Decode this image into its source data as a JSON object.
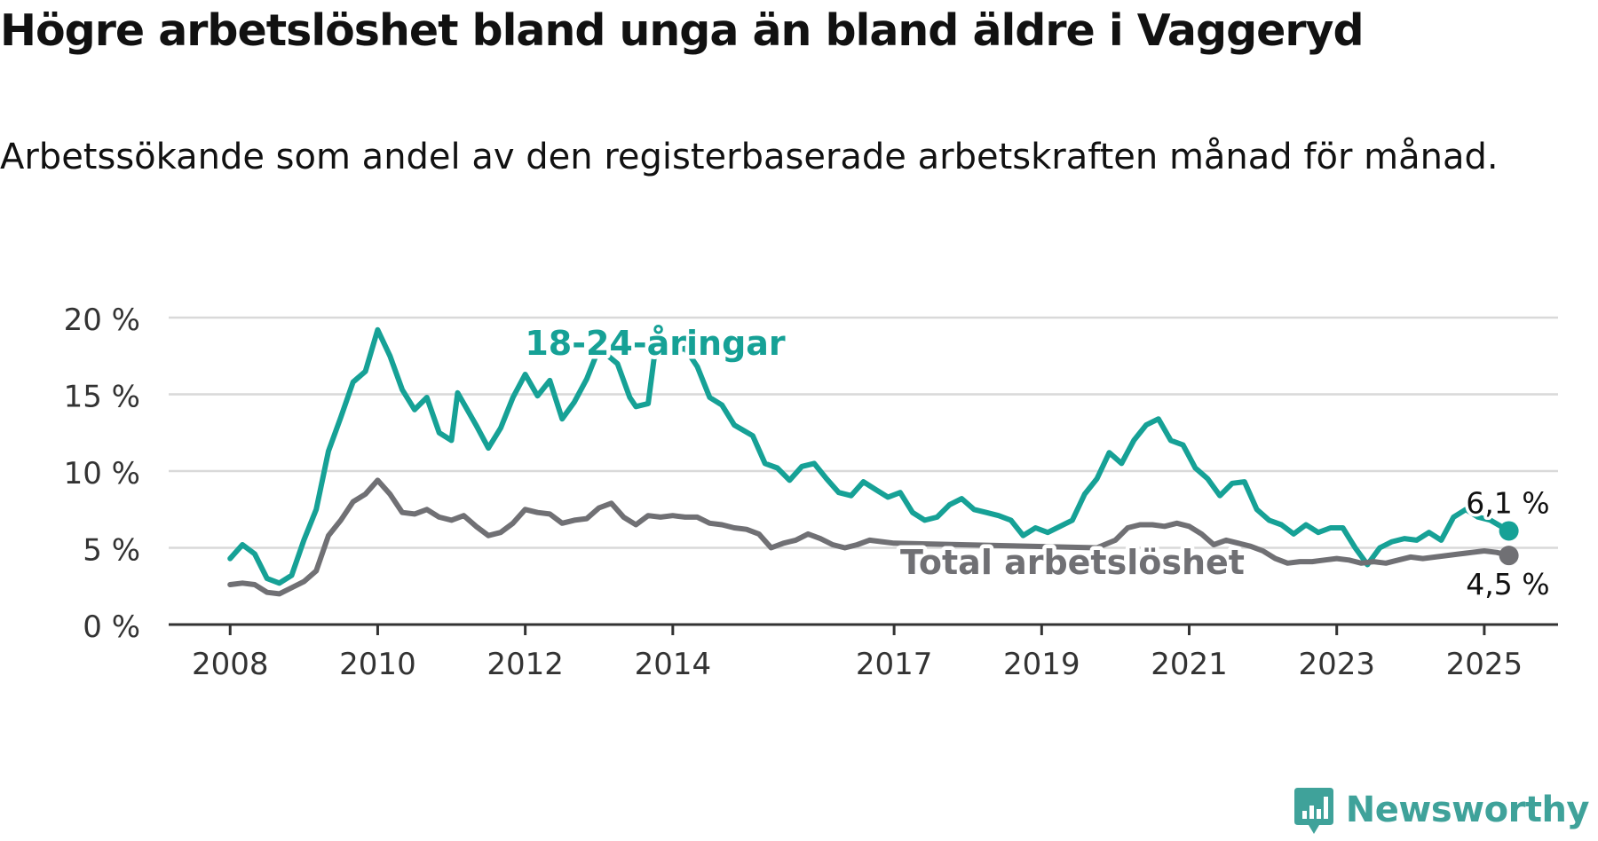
{
  "title": "Högre arbetslöshet bland unga än bland äldre i Vaggeryd",
  "subtitle": "Arbetssökande som andel av den registerbaserade arbetskraften månad för månad.",
  "brand": {
    "name": "Newsworthy",
    "icon": "newsworthy-logo-icon",
    "color": "#3fa29a"
  },
  "chart_data": {
    "type": "line",
    "title": "Högre arbetslöshet bland unga än bland äldre i Vaggeryd",
    "subtitle": "Arbetssökande som andel av den registerbaserade arbetskraften månad för månad.",
    "xlabel": "",
    "ylabel": "",
    "x_ticks": [
      "2008",
      "2010",
      "2012",
      "2014",
      "2017",
      "2019",
      "2021",
      "2023",
      "2025"
    ],
    "y_ticks": [
      "0 %",
      "5 %",
      "10 %",
      "15 %",
      "20 %"
    ],
    "ylim": [
      0,
      20
    ],
    "xlim": [
      "2007-03",
      "2026-01"
    ],
    "grid": "horizontal",
    "legend": "inline labels on lines",
    "series": [
      {
        "name": "18-24-åringar",
        "color": "#16a196",
        "end_label": "6,1 %",
        "points": [
          [
            "2008-01",
            4.3
          ],
          [
            "2008-03",
            5.2
          ],
          [
            "2008-05",
            4.6
          ],
          [
            "2008-07",
            3.0
          ],
          [
            "2008-09",
            2.7
          ],
          [
            "2008-11",
            3.2
          ],
          [
            "2009-01",
            5.5
          ],
          [
            "2009-03",
            7.5
          ],
          [
            "2009-05",
            11.3
          ],
          [
            "2009-07",
            13.5
          ],
          [
            "2009-09",
            15.8
          ],
          [
            "2009-11",
            16.5
          ],
          [
            "2010-01",
            19.2
          ],
          [
            "2010-03",
            17.5
          ],
          [
            "2010-05",
            15.3
          ],
          [
            "2010-07",
            14.0
          ],
          [
            "2010-09",
            14.8
          ],
          [
            "2010-11",
            12.5
          ],
          [
            "2011-01",
            12.0
          ],
          [
            "2011-02",
            15.1
          ],
          [
            "2011-05",
            13.0
          ],
          [
            "2011-07",
            11.5
          ],
          [
            "2011-09",
            12.8
          ],
          [
            "2011-11",
            14.8
          ],
          [
            "2012-01",
            16.3
          ],
          [
            "2012-03",
            14.9
          ],
          [
            "2012-05",
            15.9
          ],
          [
            "2012-07",
            13.4
          ],
          [
            "2012-09",
            14.5
          ],
          [
            "2012-11",
            16.0
          ],
          [
            "2013-01",
            18.0
          ],
          [
            "2013-04",
            17.0
          ],
          [
            "2013-06",
            14.8
          ],
          [
            "2013-07",
            14.2
          ],
          [
            "2013-09",
            14.4
          ],
          [
            "2013-10",
            17.5
          ],
          [
            "2014-03",
            18.0
          ],
          [
            "2014-05",
            16.8
          ],
          [
            "2014-07",
            14.8
          ],
          [
            "2014-09",
            14.3
          ],
          [
            "2014-11",
            13.0
          ],
          [
            "2015-02",
            12.3
          ],
          [
            "2015-04",
            10.5
          ],
          [
            "2015-06",
            10.2
          ],
          [
            "2015-08",
            9.4
          ],
          [
            "2015-10",
            10.3
          ],
          [
            "2015-12",
            10.5
          ],
          [
            "2016-02",
            9.5
          ],
          [
            "2016-04",
            8.6
          ],
          [
            "2016-06",
            8.4
          ],
          [
            "2016-08",
            9.3
          ],
          [
            "2016-10",
            8.8
          ],
          [
            "2016-12",
            8.3
          ],
          [
            "2017-02",
            8.6
          ],
          [
            "2017-04",
            7.3
          ],
          [
            "2017-06",
            6.8
          ],
          [
            "2017-08",
            7.0
          ],
          [
            "2017-10",
            7.8
          ],
          [
            "2017-12",
            8.2
          ],
          [
            "2018-02",
            7.5
          ],
          [
            "2018-04",
            7.3
          ],
          [
            "2018-06",
            7.1
          ],
          [
            "2018-08",
            6.8
          ],
          [
            "2018-10",
            5.8
          ],
          [
            "2018-12",
            6.3
          ],
          [
            "2019-02",
            6.0
          ],
          [
            "2019-04",
            6.4
          ],
          [
            "2019-06",
            6.8
          ],
          [
            "2019-08",
            8.5
          ],
          [
            "2019-10",
            9.5
          ],
          [
            "2019-12",
            11.2
          ],
          [
            "2020-02",
            10.5
          ],
          [
            "2020-04",
            12.0
          ],
          [
            "2020-06",
            13.0
          ],
          [
            "2020-08",
            13.4
          ],
          [
            "2020-10",
            12.0
          ],
          [
            "2020-12",
            11.7
          ],
          [
            "2021-02",
            10.2
          ],
          [
            "2021-04",
            9.5
          ],
          [
            "2021-06",
            8.4
          ],
          [
            "2021-08",
            9.2
          ],
          [
            "2021-10",
            9.3
          ],
          [
            "2021-12",
            7.5
          ],
          [
            "2022-02",
            6.8
          ],
          [
            "2022-04",
            6.5
          ],
          [
            "2022-06",
            5.9
          ],
          [
            "2022-08",
            6.5
          ],
          [
            "2022-10",
            6.0
          ],
          [
            "2022-12",
            6.3
          ],
          [
            "2023-02",
            6.3
          ],
          [
            "2023-04",
            5.0
          ],
          [
            "2023-06",
            3.9
          ],
          [
            "2023-08",
            5.0
          ],
          [
            "2023-10",
            5.4
          ],
          [
            "2023-12",
            5.6
          ],
          [
            "2024-02",
            5.5
          ],
          [
            "2024-04",
            6.0
          ],
          [
            "2024-06",
            5.5
          ],
          [
            "2024-08",
            7.0
          ],
          [
            "2024-10",
            7.5
          ],
          [
            "2024-12",
            7.0
          ],
          [
            "2025-02",
            6.8
          ],
          [
            "2025-05",
            6.1
          ]
        ]
      },
      {
        "name": "Total arbetslöshet",
        "color": "#707074",
        "end_label": "4,5 %",
        "points": [
          [
            "2008-01",
            2.6
          ],
          [
            "2008-03",
            2.7
          ],
          [
            "2008-05",
            2.6
          ],
          [
            "2008-07",
            2.1
          ],
          [
            "2008-09",
            2.0
          ],
          [
            "2008-11",
            2.4
          ],
          [
            "2009-01",
            2.8
          ],
          [
            "2009-03",
            3.5
          ],
          [
            "2009-05",
            5.8
          ],
          [
            "2009-07",
            6.8
          ],
          [
            "2009-09",
            8.0
          ],
          [
            "2009-11",
            8.5
          ],
          [
            "2010-01",
            9.4
          ],
          [
            "2010-03",
            8.5
          ],
          [
            "2010-05",
            7.3
          ],
          [
            "2010-07",
            7.2
          ],
          [
            "2010-09",
            7.5
          ],
          [
            "2010-11",
            7.0
          ],
          [
            "2011-01",
            6.8
          ],
          [
            "2011-03",
            7.1
          ],
          [
            "2011-05",
            6.4
          ],
          [
            "2011-07",
            5.8
          ],
          [
            "2011-09",
            6.0
          ],
          [
            "2011-11",
            6.6
          ],
          [
            "2012-01",
            7.5
          ],
          [
            "2012-03",
            7.3
          ],
          [
            "2012-05",
            7.2
          ],
          [
            "2012-07",
            6.6
          ],
          [
            "2012-09",
            6.8
          ],
          [
            "2012-11",
            6.9
          ],
          [
            "2013-01",
            7.6
          ],
          [
            "2013-03",
            7.9
          ],
          [
            "2013-05",
            7.0
          ],
          [
            "2013-07",
            6.5
          ],
          [
            "2013-09",
            7.1
          ],
          [
            "2013-11",
            7.0
          ],
          [
            "2014-01",
            7.1
          ],
          [
            "2014-03",
            7.0
          ],
          [
            "2014-05",
            7.0
          ],
          [
            "2014-07",
            6.6
          ],
          [
            "2014-09",
            6.5
          ],
          [
            "2014-11",
            6.3
          ],
          [
            "2015-01",
            6.2
          ],
          [
            "2015-03",
            5.9
          ],
          [
            "2015-05",
            5.0
          ],
          [
            "2015-07",
            5.3
          ],
          [
            "2015-09",
            5.5
          ],
          [
            "2015-11",
            5.9
          ],
          [
            "2016-01",
            5.6
          ],
          [
            "2016-03",
            5.2
          ],
          [
            "2016-05",
            5.0
          ],
          [
            "2016-07",
            5.2
          ],
          [
            "2016-09",
            5.5
          ],
          [
            "2016-11",
            5.4
          ],
          [
            "2017-01",
            5.3
          ],
          [
            "2019-10",
            5.0
          ],
          [
            "2020-01",
            5.5
          ],
          [
            "2020-03",
            6.3
          ],
          [
            "2020-05",
            6.5
          ],
          [
            "2020-07",
            6.5
          ],
          [
            "2020-09",
            6.4
          ],
          [
            "2020-11",
            6.6
          ],
          [
            "2021-01",
            6.4
          ],
          [
            "2021-03",
            5.9
          ],
          [
            "2021-05",
            5.2
          ],
          [
            "2021-07",
            5.5
          ],
          [
            "2021-09",
            5.3
          ],
          [
            "2021-11",
            5.1
          ],
          [
            "2022-01",
            4.8
          ],
          [
            "2022-03",
            4.3
          ],
          [
            "2022-05",
            4.0
          ],
          [
            "2022-07",
            4.1
          ],
          [
            "2022-09",
            4.1
          ],
          [
            "2022-11",
            4.2
          ],
          [
            "2023-01",
            4.3
          ],
          [
            "2023-03",
            4.2
          ],
          [
            "2023-05",
            4.0
          ],
          [
            "2023-07",
            4.1
          ],
          [
            "2023-09",
            4.0
          ],
          [
            "2023-11",
            4.2
          ],
          [
            "2024-01",
            4.4
          ],
          [
            "2024-03",
            4.3
          ],
          [
            "2024-05",
            4.4
          ],
          [
            "2024-07",
            4.5
          ],
          [
            "2024-09",
            4.6
          ],
          [
            "2024-11",
            4.7
          ],
          [
            "2025-01",
            4.8
          ],
          [
            "2025-03",
            4.7
          ],
          [
            "2025-05",
            4.5
          ]
        ]
      }
    ]
  }
}
